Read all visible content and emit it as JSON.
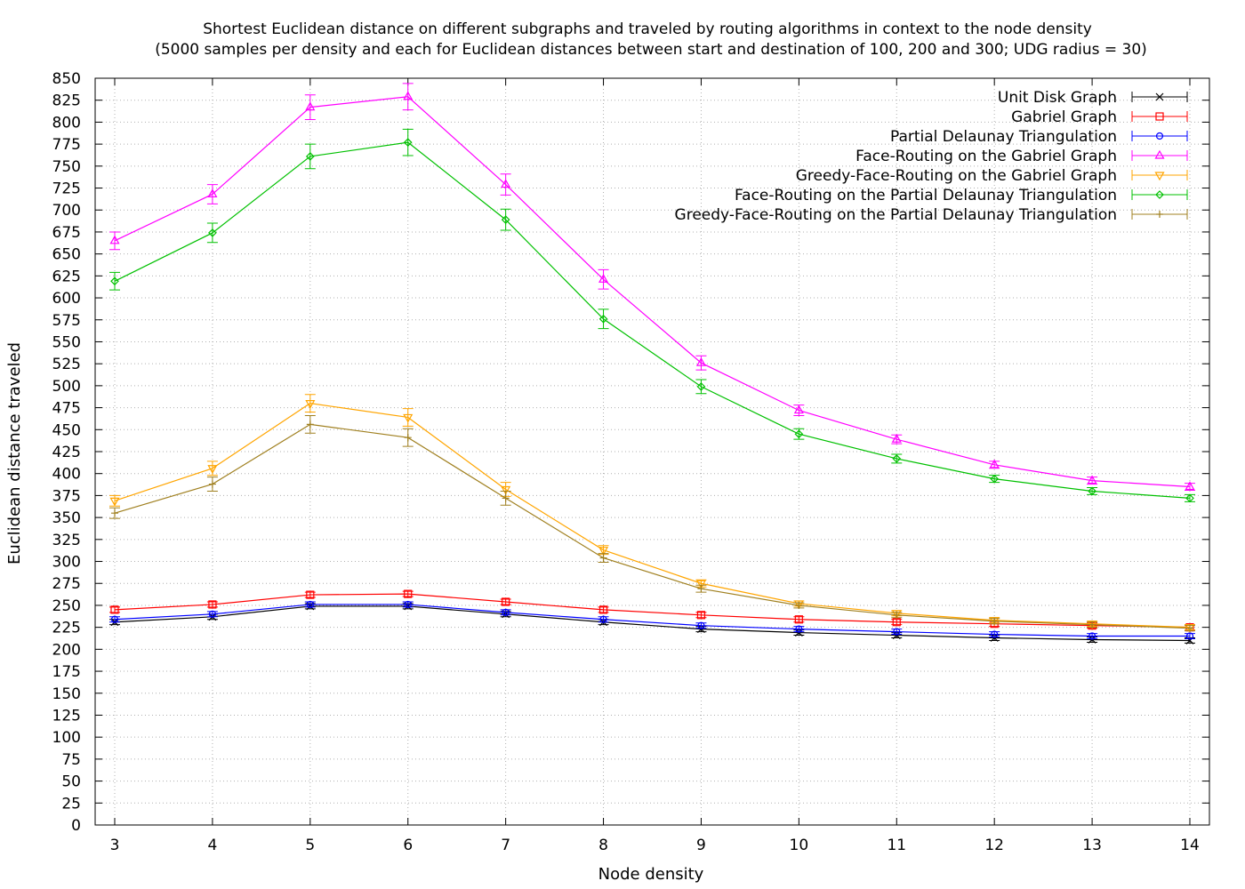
{
  "chart_data": {
    "type": "line",
    "title": "Shortest Euclidean distance on different subgraphs and traveled by routing algorithms in context to the node density",
    "subtitle": "(5000 samples per density and each for Euclidean distances between start and destination of 100, 200 and 300; UDG radius = 30)",
    "xlabel": "Node density",
    "ylabel": "Euclidean distance traveled",
    "x": [
      3,
      4,
      5,
      6,
      7,
      8,
      9,
      10,
      11,
      12,
      13,
      14
    ],
    "xlim": [
      3,
      14
    ],
    "ylim": [
      0,
      850
    ],
    "ytick_step": 25,
    "grid": true,
    "legend_position": "top-right",
    "series": [
      {
        "name": "Unit Disk Graph",
        "color": "#000000",
        "marker": "x",
        "values": [
          231,
          237,
          249,
          249,
          240,
          231,
          223,
          219,
          216,
          213,
          211,
          210
        ],
        "errors": [
          3,
          3,
          3,
          3,
          3,
          3,
          3,
          3,
          3,
          3,
          3,
          3
        ]
      },
      {
        "name": "Gabriel Graph",
        "color": "#ff0000",
        "marker": "square",
        "values": [
          245,
          251,
          262,
          263,
          254,
          245,
          239,
          234,
          231,
          229,
          227,
          225
        ],
        "errors": [
          3,
          3,
          3,
          3,
          3,
          3,
          3,
          3,
          3,
          3,
          3,
          3
        ]
      },
      {
        "name": "Partial Delaunay Triangulation",
        "color": "#0000ff",
        "marker": "circle",
        "values": [
          234,
          240,
          251,
          251,
          242,
          234,
          227,
          223,
          220,
          217,
          215,
          215
        ],
        "errors": [
          3,
          3,
          3,
          3,
          3,
          3,
          3,
          3,
          3,
          3,
          3,
          3
        ]
      },
      {
        "name": "Face-Routing on the Gabriel Graph",
        "color": "#ff00ff",
        "marker": "triangle-up",
        "values": [
          665,
          718,
          817,
          829,
          729,
          621,
          526,
          472,
          439,
          410,
          392,
          385
        ],
        "errors": [
          10,
          11,
          14,
          15,
          12,
          11,
          8,
          6,
          5,
          4,
          4,
          4
        ]
      },
      {
        "name": "Greedy-Face-Routing on the Gabriel Graph",
        "color": "#ffa500",
        "marker": "triangle-down",
        "values": [
          369,
          406,
          480,
          464,
          382,
          313,
          275,
          252,
          241,
          233,
          229,
          225
        ],
        "errors": [
          6,
          8,
          10,
          10,
          8,
          5,
          4,
          3,
          3,
          3,
          3,
          3
        ]
      },
      {
        "name": "Face-Routing on the Partial Delaunay Triangulation",
        "color": "#00c000",
        "marker": "diamond",
        "values": [
          619,
          674,
          761,
          777,
          689,
          576,
          499,
          445,
          417,
          394,
          380,
          372
        ],
        "errors": [
          10,
          11,
          14,
          15,
          12,
          11,
          8,
          6,
          5,
          4,
          4,
          4
        ]
      },
      {
        "name": "Greedy-Face-Routing on the Partial Delaunay Triangulation",
        "color": "#a08020",
        "marker": "plus",
        "values": [
          355,
          388,
          456,
          441,
          372,
          304,
          269,
          250,
          239,
          232,
          228,
          224
        ],
        "errors": [
          6,
          8,
          10,
          10,
          8,
          5,
          4,
          3,
          3,
          3,
          3,
          3
        ]
      }
    ]
  }
}
